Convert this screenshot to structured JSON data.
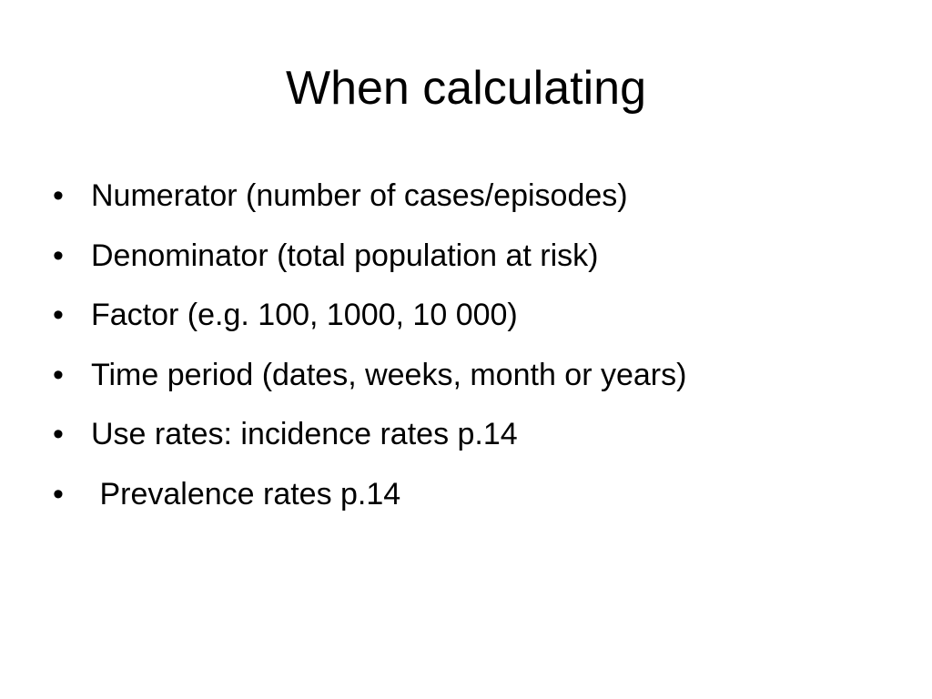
{
  "slide": {
    "title": "When calculating",
    "bullet_symbol": "•",
    "bullets": [
      "Numerator (number of cases/episodes)",
      "Denominator (total population at risk)",
      "Factor (e.g. 100, 1000, 10 000)",
      "Time period (dates, weeks, month or years)",
      "Use rates: incidence rates p.14",
      " Prevalence rates p.14"
    ]
  }
}
